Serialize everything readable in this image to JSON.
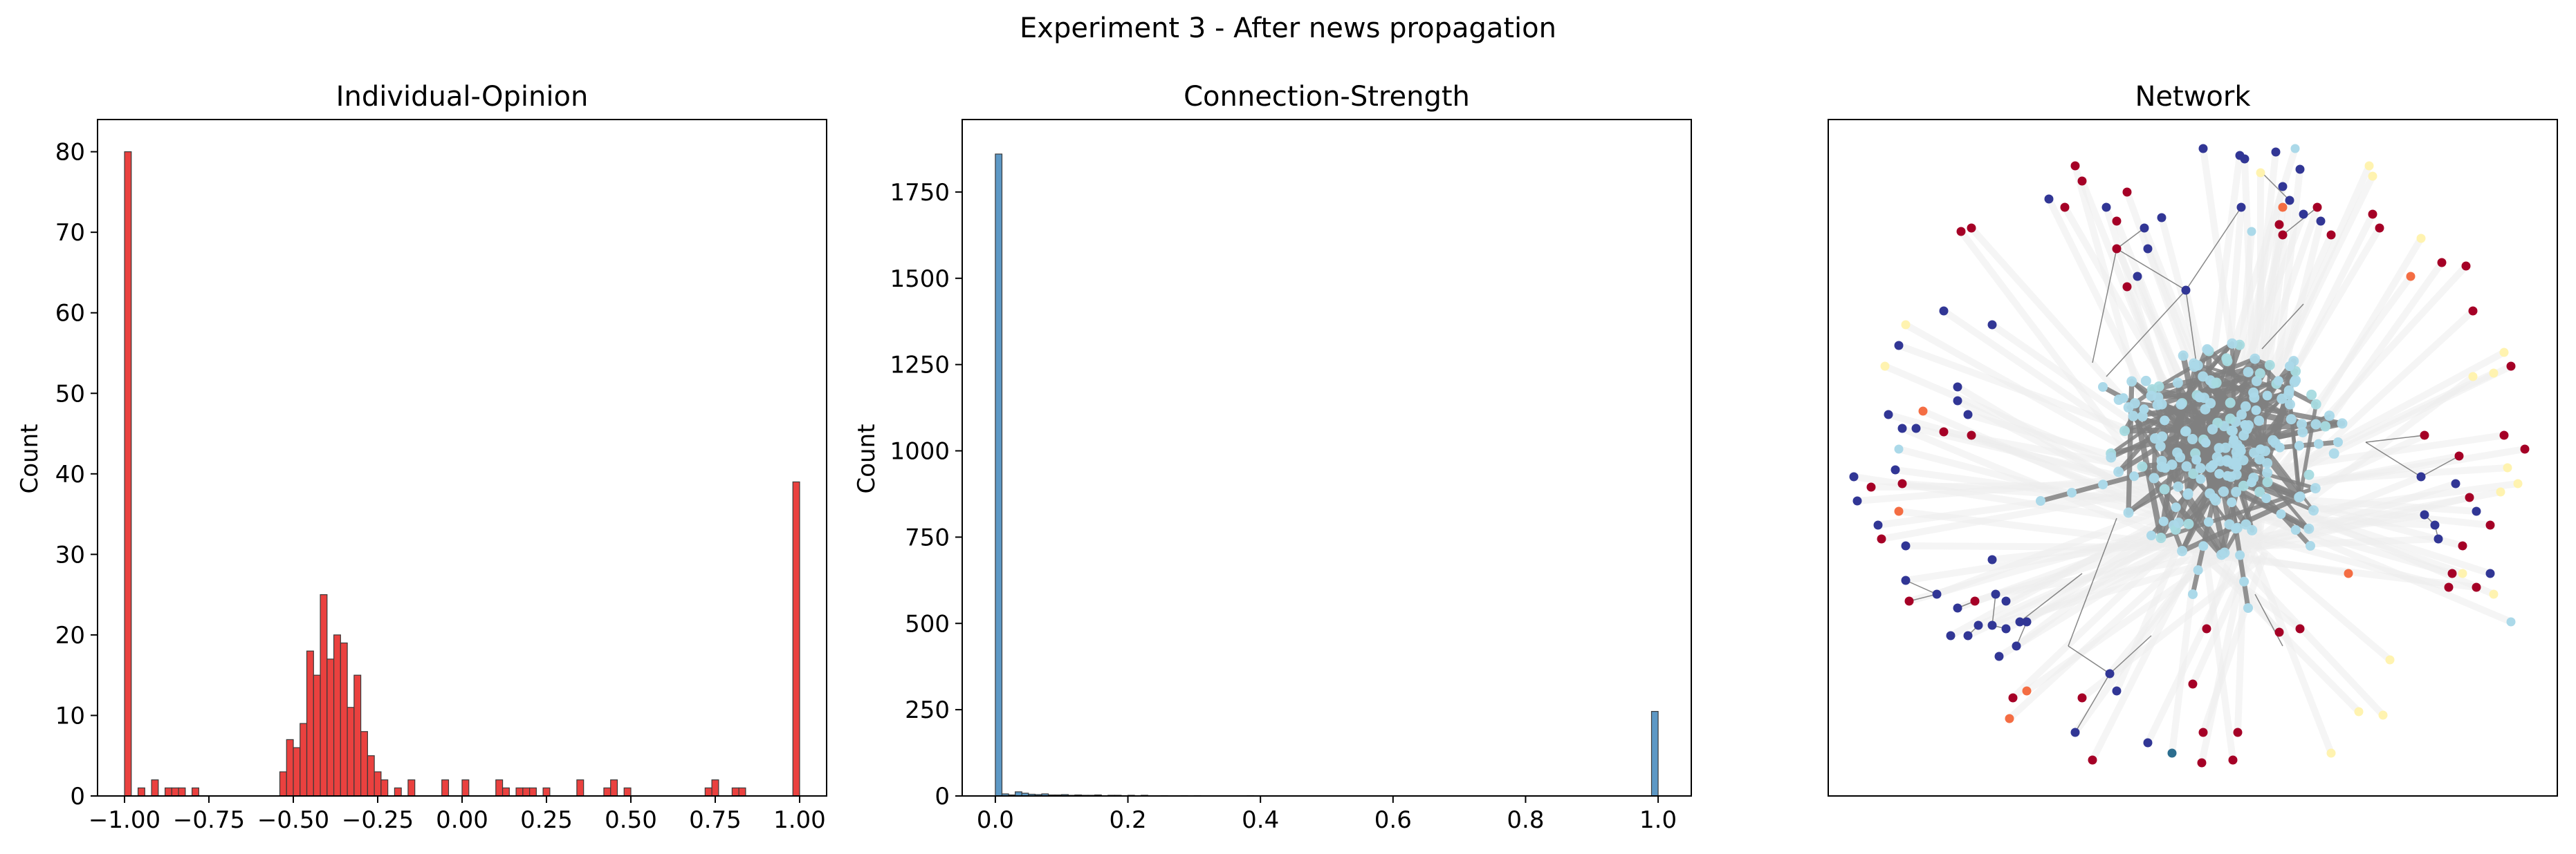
{
  "figure": {
    "title": "Experiment 3 - After news propagation"
  },
  "chart_data": [
    {
      "type": "bar",
      "title": "Individual-Opinion",
      "xlabel": "",
      "ylabel": "Count",
      "xlim": [
        -1.08,
        1.08
      ],
      "ylim": [
        0,
        84
      ],
      "xticks": [
        -1.0,
        -0.75,
        -0.5,
        -0.25,
        0.0,
        0.25,
        0.5,
        0.75,
        1.0
      ],
      "xtick_labels": [
        "−1.00",
        "−0.75",
        "−0.50",
        "−0.25",
        "0.00",
        "0.25",
        "0.50",
        "0.75",
        "1.00"
      ],
      "yticks": [
        0,
        10,
        20,
        30,
        40,
        50,
        60,
        70,
        80
      ],
      "ytick_labels": [
        "0",
        "10",
        "20",
        "30",
        "40",
        "50",
        "60",
        "70",
        "80"
      ],
      "bin_range": [
        -1.0,
        1.0
      ],
      "bin_count": 100,
      "bars": [
        {
          "bin": 0,
          "count": 80
        },
        {
          "bin": 2,
          "count": 1
        },
        {
          "bin": 4,
          "count": 2
        },
        {
          "bin": 6,
          "count": 1
        },
        {
          "bin": 7,
          "count": 1
        },
        {
          "bin": 8,
          "count": 1
        },
        {
          "bin": 10,
          "count": 1
        },
        {
          "bin": 23,
          "count": 3
        },
        {
          "bin": 24,
          "count": 7
        },
        {
          "bin": 25,
          "count": 6
        },
        {
          "bin": 26,
          "count": 9
        },
        {
          "bin": 27,
          "count": 18
        },
        {
          "bin": 28,
          "count": 15
        },
        {
          "bin": 29,
          "count": 25
        },
        {
          "bin": 30,
          "count": 17
        },
        {
          "bin": 31,
          "count": 20
        },
        {
          "bin": 32,
          "count": 19
        },
        {
          "bin": 33,
          "count": 11
        },
        {
          "bin": 34,
          "count": 15
        },
        {
          "bin": 35,
          "count": 8
        },
        {
          "bin": 36,
          "count": 5
        },
        {
          "bin": 37,
          "count": 3
        },
        {
          "bin": 38,
          "count": 2
        },
        {
          "bin": 40,
          "count": 1
        },
        {
          "bin": 42,
          "count": 2
        },
        {
          "bin": 47,
          "count": 2
        },
        {
          "bin": 50,
          "count": 2
        },
        {
          "bin": 55,
          "count": 2
        },
        {
          "bin": 56,
          "count": 1
        },
        {
          "bin": 58,
          "count": 1
        },
        {
          "bin": 59,
          "count": 1
        },
        {
          "bin": 60,
          "count": 1
        },
        {
          "bin": 62,
          "count": 1
        },
        {
          "bin": 67,
          "count": 2
        },
        {
          "bin": 71,
          "count": 1
        },
        {
          "bin": 72,
          "count": 2
        },
        {
          "bin": 74,
          "count": 1
        },
        {
          "bin": 86,
          "count": 1
        },
        {
          "bin": 87,
          "count": 2
        },
        {
          "bin": 90,
          "count": 1
        },
        {
          "bin": 91,
          "count": 1
        },
        {
          "bin": 99,
          "count": 39
        }
      ],
      "color": "#e8312f"
    },
    {
      "type": "bar",
      "title": "Connection-Strength",
      "xlabel": "",
      "ylabel": "Count",
      "xlim": [
        -0.05,
        1.05
      ],
      "ylim": [
        0,
        1960
      ],
      "xticks": [
        0.0,
        0.2,
        0.4,
        0.6,
        0.8,
        1.0
      ],
      "xtick_labels": [
        "0.0",
        "0.2",
        "0.4",
        "0.6",
        "0.8",
        "1.0"
      ],
      "yticks": [
        0,
        250,
        500,
        750,
        1000,
        1250,
        1500,
        1750
      ],
      "ytick_labels": [
        "0",
        "250",
        "500",
        "750",
        "1000",
        "1250",
        "1500",
        "1750"
      ],
      "bin_range": [
        0.0,
        1.0
      ],
      "bin_count": 100,
      "bars": [
        {
          "bin": 0,
          "count": 1860
        },
        {
          "bin": 1,
          "count": 6
        },
        {
          "bin": 2,
          "count": 3
        },
        {
          "bin": 3,
          "count": 12
        },
        {
          "bin": 4,
          "count": 8
        },
        {
          "bin": 5,
          "count": 5
        },
        {
          "bin": 6,
          "count": 4
        },
        {
          "bin": 7,
          "count": 6
        },
        {
          "bin": 8,
          "count": 3
        },
        {
          "bin": 9,
          "count": 3
        },
        {
          "bin": 10,
          "count": 4
        },
        {
          "bin": 11,
          "count": 2
        },
        {
          "bin": 12,
          "count": 3
        },
        {
          "bin": 13,
          "count": 2
        },
        {
          "bin": 14,
          "count": 2
        },
        {
          "bin": 15,
          "count": 3
        },
        {
          "bin": 17,
          "count": 2
        },
        {
          "bin": 18,
          "count": 2
        },
        {
          "bin": 20,
          "count": 2
        },
        {
          "bin": 22,
          "count": 2
        },
        {
          "bin": 25,
          "count": 1
        },
        {
          "bin": 28,
          "count": 1
        },
        {
          "bin": 30,
          "count": 1
        },
        {
          "bin": 38,
          "count": 1
        },
        {
          "bin": 99,
          "count": 245
        }
      ],
      "color": "#4f8fc0"
    },
    {
      "type": "scatter",
      "title": "Network",
      "axes_visible": false,
      "node_colors": {
        "negative": "#313695",
        "positive": "#a50026",
        "center": "#abd9e9",
        "center_alt": "#a6dbe0",
        "orange": "#f46d43",
        "light_orange": "#fdae61",
        "pale_yellow": "#fff3b0",
        "teal": "#2c6e8f"
      },
      "edge_colors": {
        "faint": "#ededed",
        "strong": "#808080",
        "thin": "#555555"
      }
    }
  ]
}
